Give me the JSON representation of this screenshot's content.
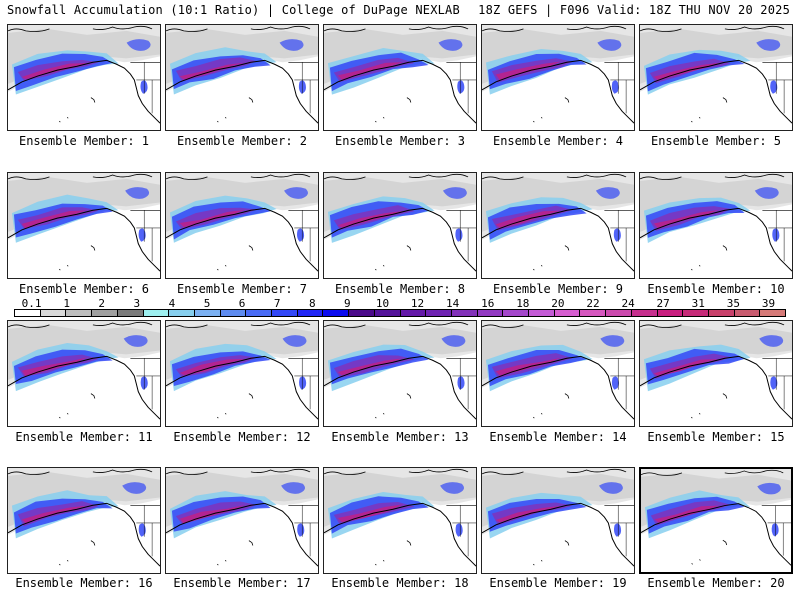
{
  "header": {
    "left_title": "Snowfall Accumulation (10:1 Ratio) | College of DuPage NEXLAB",
    "right_title": "18Z GEFS | F096 Valid: 18Z THU NOV 20 2025"
  },
  "panels": [
    {
      "label": "Ensemble Member: 1",
      "member": 1
    },
    {
      "label": "Ensemble Member: 2",
      "member": 2
    },
    {
      "label": "Ensemble Member: 3",
      "member": 3
    },
    {
      "label": "Ensemble Member: 4",
      "member": 4
    },
    {
      "label": "Ensemble Member: 5",
      "member": 5
    },
    {
      "label": "Ensemble Member: 6",
      "member": 6
    },
    {
      "label": "Ensemble Member: 7",
      "member": 7
    },
    {
      "label": "Ensemble Member: 8",
      "member": 8
    },
    {
      "label": "Ensemble Member: 9",
      "member": 9
    },
    {
      "label": "Ensemble Member: 10",
      "member": 10
    },
    {
      "label": "Ensemble Member: 11",
      "member": 11
    },
    {
      "label": "Ensemble Member: 12",
      "member": 12
    },
    {
      "label": "Ensemble Member: 13",
      "member": 13
    },
    {
      "label": "Ensemble Member: 14",
      "member": 14
    },
    {
      "label": "Ensemble Member: 15",
      "member": 15
    },
    {
      "label": "Ensemble Member: 16",
      "member": 16
    },
    {
      "label": "Ensemble Member: 17",
      "member": 17
    },
    {
      "label": "Ensemble Member: 18",
      "member": 18
    },
    {
      "label": "Ensemble Member: 19",
      "member": 19
    },
    {
      "label": "Ensemble Member: 20",
      "member": 20,
      "selected": true
    }
  ],
  "legend": {
    "tick_labels": [
      "0.1",
      "1",
      "2",
      "3",
      "4",
      "5",
      "6",
      "7",
      "8",
      "9",
      "10",
      "12",
      "14",
      "16",
      "18",
      "20",
      "22",
      "24",
      "27",
      "31",
      "35",
      "39"
    ],
    "colors": [
      "#ffffff",
      "#d9d9d9",
      "#bdbdbd",
      "#a0a0a0",
      "#7c7c7c",
      "#9ef0f0",
      "#87cfee",
      "#7cb1f2",
      "#5f8cf0",
      "#4a6cf5",
      "#3348f7",
      "#2226f5",
      "#0c0cf0",
      "#4b0a8a",
      "#54139a",
      "#6419a8",
      "#6f23b2",
      "#8231b9",
      "#9239c2",
      "#a447cb",
      "#c45bd6",
      "#d65ed0",
      "#d657bf",
      "#cc4aae",
      "#c72f8e",
      "#c81e7f",
      "#c62a78",
      "#c8406a",
      "#c95b6f",
      "#d67a78",
      "#e0947e",
      "#e8a98c",
      "#f2c4a6",
      "#f4d2b4",
      "#f7dec0",
      "#fbead0"
    ]
  },
  "colors": {
    "land_gray": "#c8c8c8",
    "dark_gray": "#7c7c7c",
    "snow_light": "#87cfee",
    "snow_blue": "#3348f7",
    "snow_purple": "#8231b9",
    "snow_magenta": "#c81e7f"
  }
}
